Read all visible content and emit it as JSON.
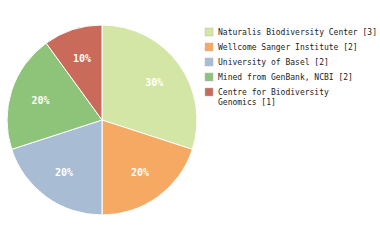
{
  "chart_data": {
    "type": "pie",
    "categories": [
      "Naturalis Biodiversity Center [3]",
      "Wellcome Sanger Institute [2]",
      "University of Basel [2]",
      "Mined from GenBank, NCBI [2]",
      "Centre for Biodiversity\nGenomics [1]"
    ],
    "values": [
      30,
      20,
      20,
      20,
      10
    ],
    "value_labels": [
      "30%",
      "20%",
      "20%",
      "20%",
      "10%"
    ],
    "colors": [
      "#d4e6a5",
      "#f5a962",
      "#a8bcd4",
      "#8dc47a",
      "#c96a5a"
    ],
    "data_labels": true,
    "legend": "right"
  }
}
